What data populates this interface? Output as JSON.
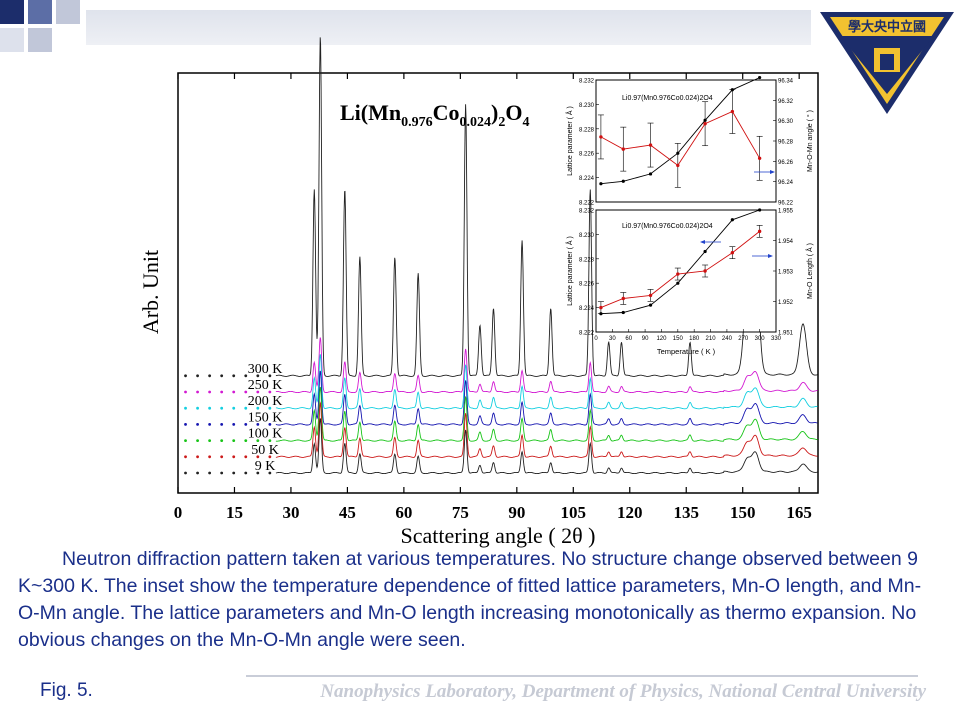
{
  "slide": {
    "caption": "Neutron diffraction pattern taken at various temperatures. No structure change observed between 9 K~300 K. The inset show the temperature dependence of fitted lattice parameters, Mn-O length, and Mn-O-Mn angle. The lattice parameters and Mn-O length increasing monotonically as thermo expansion. No obvious changes on the Mn-O-Mn angle were seen.",
    "fig_label": "Fig. 5.",
    "footer": "Nanophysics Laboratory, Department of Physics, National Central University",
    "logo_text": "學大央中立國",
    "colors": {
      "caption": "#1a2f8a",
      "logo_gold": "#f2c230",
      "logo_navy": "#1c2d6b"
    }
  },
  "chart_data": [
    {
      "type": "line",
      "title": "Li(Mn0.976Co0.024)2O4",
      "title_parts": {
        "base": "Li(Mn",
        "sub1": "0.976",
        "mid": "Co",
        "sub2": "0.024",
        "close": ")",
        "sub3": "2",
        "o": "O",
        "sub4": "4"
      },
      "xlabel": "Scattering angle ( 2θ )",
      "ylabel": "Arb. Unit",
      "xlim": [
        0,
        170
      ],
      "xticks": [
        0,
        15,
        30,
        45,
        60,
        75,
        90,
        105,
        120,
        135,
        150,
        165
      ],
      "series": [
        {
          "name": "300 K",
          "color": "#222222",
          "offset": 6
        },
        {
          "name": "250 K",
          "color": "#d21ad2",
          "offset": 5
        },
        {
          "name": "200 K",
          "color": "#14cfe0",
          "offset": 4
        },
        {
          "name": "150 K",
          "color": "#1515b0",
          "offset": 3
        },
        {
          "name": "100 K",
          "color": "#18c418",
          "offset": 2
        },
        {
          "name": "50 K",
          "color": "#cc1a1a",
          "offset": 1
        },
        {
          "name": "9 K",
          "color": "#222222",
          "offset": 0
        }
      ],
      "peaks": [
        [
          36.2,
          0.55
        ],
        [
          37.8,
          1.0
        ],
        [
          44.3,
          0.55
        ],
        [
          48.3,
          0.35
        ],
        [
          57.6,
          0.35
        ],
        [
          63.8,
          0.3
        ],
        [
          76.4,
          0.8
        ],
        [
          80.2,
          0.15
        ],
        [
          83.8,
          0.2
        ],
        [
          91.4,
          0.4
        ],
        [
          99.0,
          0.2
        ],
        [
          109.5,
          0.55
        ],
        [
          114.4,
          0.1
        ],
        [
          117.8,
          0.1
        ],
        [
          136.0,
          0.1
        ],
        [
          151.2,
          0.25
        ],
        [
          153.4,
          0.35
        ],
        [
          166.0,
          0.15
        ]
      ]
    },
    {
      "type": "line",
      "name": "inset-angle",
      "legend": "Li0.97(Mn0.976Co0.024)2O4",
      "ylabel_left": "Lattice parameter ( Å )",
      "ylabel_right": "Mn-O-Mn angle ( ° )",
      "x": [
        9,
        50,
        100,
        150,
        200,
        250,
        300
      ],
      "ylim_left": [
        8.222,
        8.232
      ],
      "ylim_right": [
        96.22,
        96.34
      ],
      "yticks_left": [
        "8.222",
        "8.224",
        "8.226",
        "8.228",
        "8.230",
        "8.232"
      ],
      "yticks_right": [
        "96.22",
        "96.24",
        "96.26",
        "96.28",
        "96.30",
        "96.32",
        "96.34"
      ],
      "lattice": [
        8.2235,
        8.2237,
        8.2243,
        8.226,
        8.2287,
        8.2312,
        8.2322
      ],
      "angle": [
        96.284,
        96.272,
        96.276,
        96.256,
        96.297,
        96.309,
        96.263
      ]
    },
    {
      "type": "line",
      "name": "inset-length",
      "legend": "Li0.97(Mn0.976Co0.024)2O4",
      "xlabel": "Temperature ( K )",
      "ylabel_left": "Lattice parameter ( Å )",
      "ylabel_right": "Mn-O Length ( Å )",
      "x": [
        9,
        50,
        100,
        150,
        200,
        250,
        300
      ],
      "xticks": [
        "0",
        "30",
        "60",
        "90",
        "120",
        "150",
        "180",
        "210",
        "240",
        "270",
        "300",
        "330"
      ],
      "ylim_left": [
        8.222,
        8.232
      ],
      "ylim_right": [
        1.951,
        1.955
      ],
      "yticks_left": [
        "8.222",
        "8.224",
        "8.226",
        "8.228",
        "8.230",
        "8.232"
      ],
      "yticks_right": [
        "1.951",
        "1.952",
        "1.953",
        "1.954",
        "1.955"
      ],
      "lattice": [
        8.2235,
        8.2236,
        8.2242,
        8.226,
        8.2286,
        8.2312,
        8.232
      ],
      "length": [
        1.9518,
        1.9521,
        1.9522,
        1.9529,
        1.953,
        1.9536,
        1.9543
      ]
    }
  ]
}
